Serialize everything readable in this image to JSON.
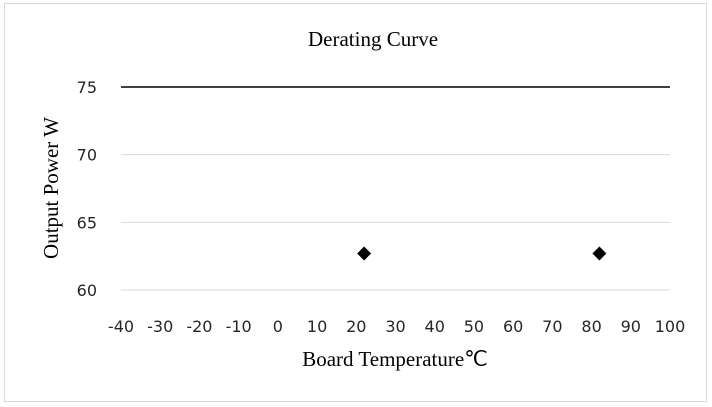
{
  "chart_data": {
    "type": "scatter",
    "title": "Derating Curve",
    "xlabel": "Board Temperature℃",
    "ylabel": "Output Power W",
    "xlim": [
      -40,
      100
    ],
    "ylim": [
      60,
      75
    ],
    "x_ticks": [
      -40,
      -30,
      -20,
      -10,
      0,
      10,
      20,
      30,
      40,
      50,
      60,
      70,
      80,
      90,
      100
    ],
    "y_ticks": [
      60,
      65,
      70,
      75
    ],
    "grid": true,
    "legend": "none",
    "reference_lines": [
      {
        "y": 75,
        "color": "#000000"
      }
    ],
    "series": [
      {
        "marker": "diamond",
        "color": "#000000",
        "points": [
          {
            "x": 22,
            "y": 62.7
          },
          {
            "x": 82,
            "y": 62.7
          }
        ]
      }
    ]
  }
}
